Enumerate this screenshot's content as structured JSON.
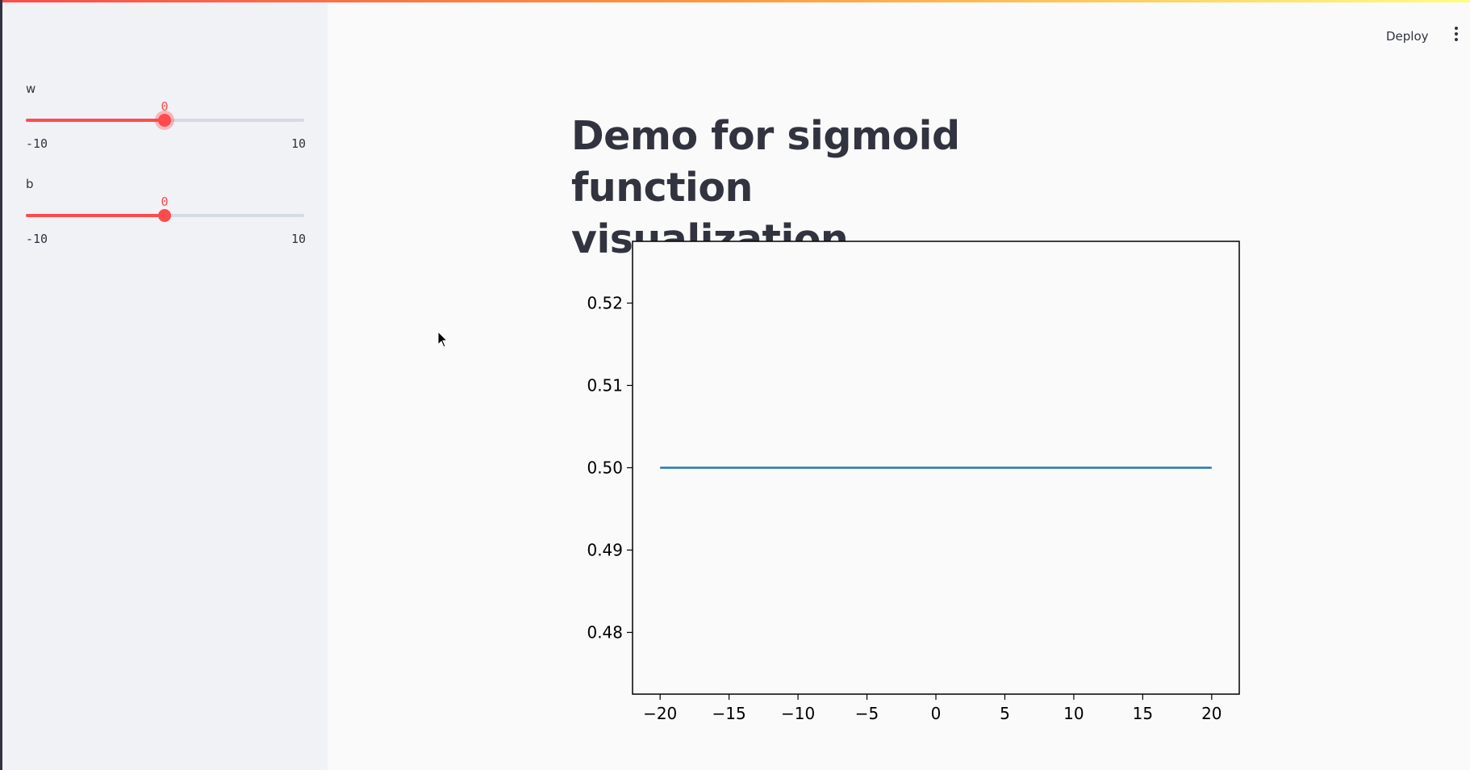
{
  "header": {
    "deploy_label": "Deploy",
    "menu_icon": "kebab-menu-icon"
  },
  "sidebar": {
    "sliders": [
      {
        "label": "w",
        "value": "0",
        "min": "-10",
        "max": "10",
        "fraction": 0.5
      },
      {
        "label": "b",
        "value": "0",
        "min": "-10",
        "max": "10",
        "fraction": 0.5
      }
    ]
  },
  "main": {
    "title_line1": "Demo for sigmoid function",
    "title_line2": "visualization."
  },
  "colors": {
    "accent": "#ff4b4b",
    "line": "#1f77b4",
    "text": "#31333f",
    "sidebar_bg": "#f0f2f6"
  },
  "chart_data": {
    "type": "line",
    "x": [
      -20,
      20
    ],
    "y": [
      0.5,
      0.5
    ],
    "xlim": [
      -22,
      22
    ],
    "ylim": [
      0.4725,
      0.5275
    ],
    "xticks": [
      -20,
      -15,
      -10,
      -5,
      0,
      5,
      10,
      15,
      20
    ],
    "xtick_labels": [
      "−20",
      "−15",
      "−10",
      "−5",
      "0",
      "5",
      "10",
      "15",
      "20"
    ],
    "yticks": [
      0.48,
      0.49,
      0.5,
      0.51,
      0.52
    ],
    "ytick_labels": [
      "0.48",
      "0.49",
      "0.50",
      "0.51",
      "0.52"
    ],
    "title": "",
    "xlabel": "",
    "ylabel": "",
    "grid": false
  }
}
